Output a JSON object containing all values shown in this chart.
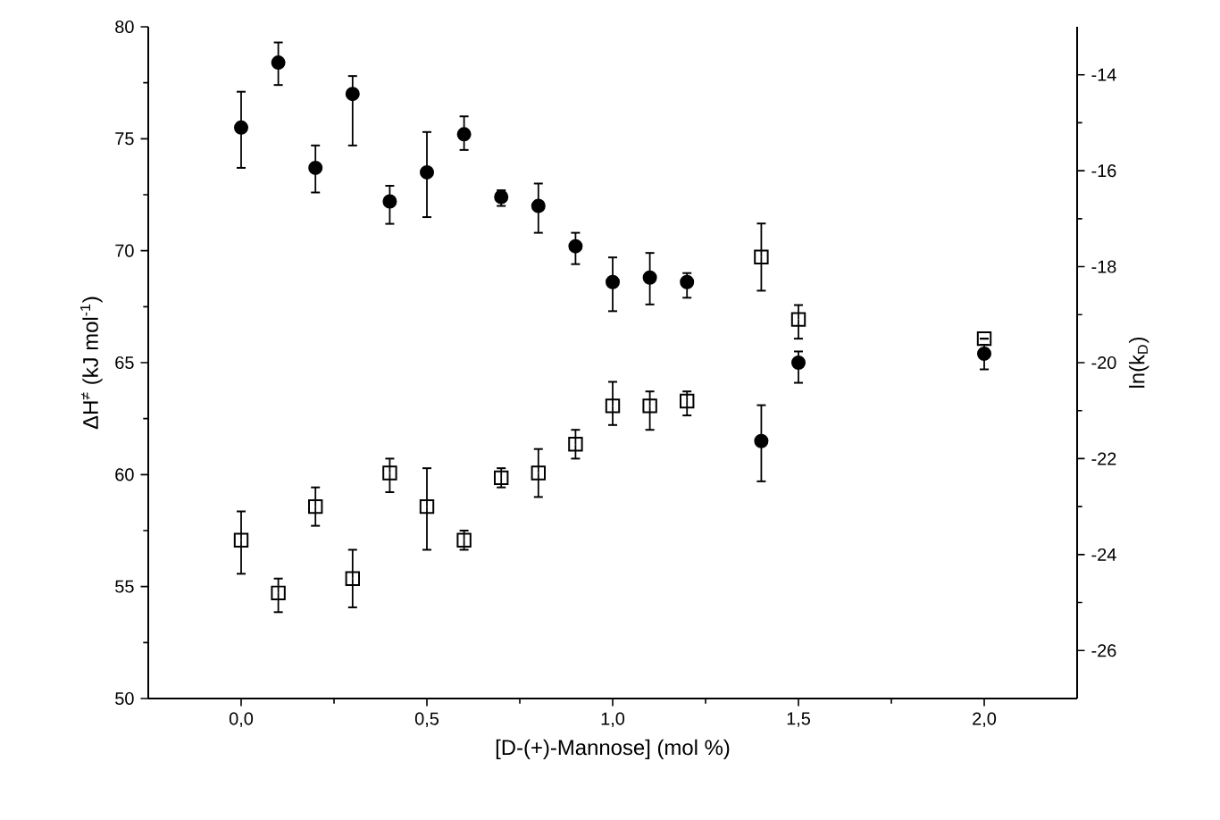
{
  "chart_data": {
    "type": "scatter",
    "xlabel": "[D-(+)-Mannose] (mol %)",
    "ylabel": "ΔH$^{≠}$ (kJ mol$^{-1}$)",
    "y2label": "ln(k$_{D}$)",
    "x": [
      0.0,
      0.1,
      0.2,
      0.3,
      0.4,
      0.5,
      0.6,
      0.7,
      0.8,
      0.9,
      1.0,
      1.1,
      1.2,
      1.4,
      1.5,
      2.0
    ],
    "series": [
      {
        "color": "#000000",
        "marker": "circle",
        "values": [
          75.5,
          78.4,
          73.7,
          77.0,
          72.2,
          73.5,
          75.2,
          72.4,
          72.0,
          70.2,
          68.6,
          68.8,
          68.6,
          61.5,
          65.0,
          65.4
        ],
        "errors": [
          [
            73.7,
            77.1
          ],
          [
            77.4,
            79.3
          ],
          [
            72.6,
            74.7
          ],
          [
            74.7,
            77.8
          ],
          [
            71.2,
            72.9
          ],
          [
            71.5,
            75.3
          ],
          [
            74.5,
            76.0
          ],
          [
            72.0,
            72.7
          ],
          [
            70.8,
            73.0
          ],
          [
            69.4,
            70.8
          ],
          [
            67.3,
            69.7
          ],
          [
            67.6,
            69.9
          ],
          [
            67.9,
            69.0
          ],
          [
            59.7,
            63.1
          ],
          [
            64.1,
            65.5
          ],
          [
            64.7,
            65.8
          ]
        ]
      },
      {
        "color": "#000000",
        "marker": "square",
        "axis": "y2",
        "values": [
          -23.7,
          -24.8,
          -23.0,
          -24.5,
          -22.3,
          -23.0,
          -23.7,
          -22.4,
          -22.3,
          -21.7,
          -20.9,
          -20.9,
          -20.8,
          -17.8,
          -19.1,
          -19.5
        ],
        "errors": [
          [
            -24.4,
            -23.1
          ],
          [
            -25.2,
            -24.5
          ],
          [
            -23.4,
            -22.6
          ],
          [
            -25.1,
            -23.9
          ],
          [
            -22.7,
            -22.0
          ],
          [
            -23.9,
            -22.2
          ],
          [
            -23.9,
            -23.5
          ],
          [
            -22.6,
            -22.2
          ],
          [
            -22.8,
            -21.8
          ],
          [
            -22.0,
            -21.4
          ],
          [
            -21.3,
            -20.4
          ],
          [
            -21.4,
            -20.6
          ],
          [
            -21.1,
            -20.6
          ],
          [
            -18.5,
            -17.1
          ],
          [
            -19.5,
            -18.8
          ],
          null
        ]
      }
    ],
    "xlim": [
      -0.25,
      2.25
    ],
    "xticks": [
      {
        "value": 0,
        "label": "0,0"
      },
      {
        "value": 0.5,
        "label": "0,5"
      },
      {
        "value": 1,
        "label": "1,0"
      },
      {
        "value": 1.5,
        "label": "1,5"
      },
      {
        "value": 2,
        "label": "2,0"
      }
    ],
    "ylim": [
      50,
      80
    ],
    "yticks": [
      50,
      55,
      60,
      65,
      70,
      75,
      80
    ],
    "y2lim": [
      -27,
      -13
    ],
    "y2ticks": [
      -26,
      -24,
      -22,
      -20,
      -18,
      -16,
      -14
    ]
  }
}
